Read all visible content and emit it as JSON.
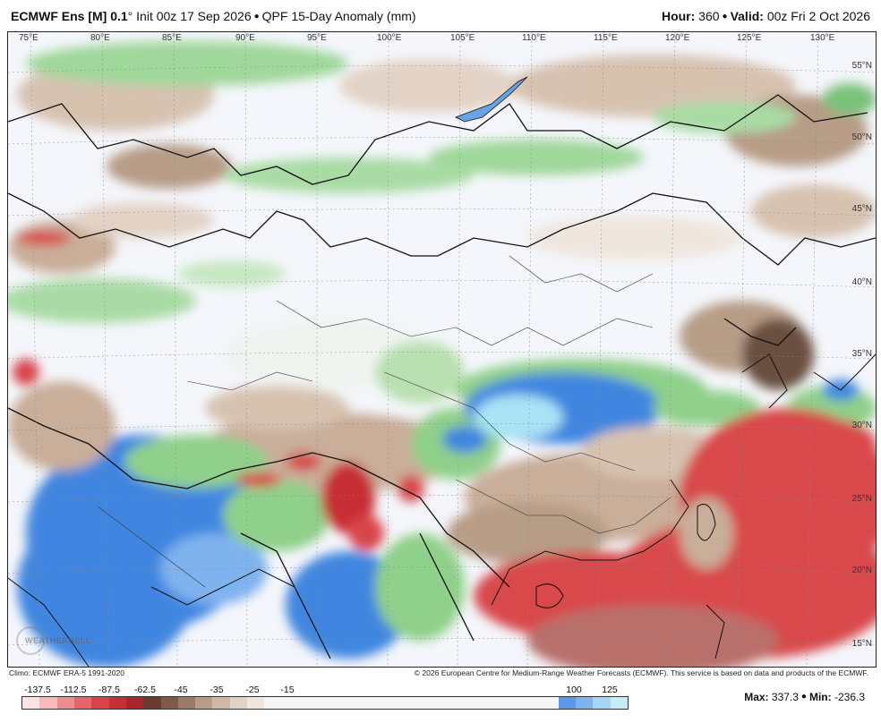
{
  "header": {
    "model": "ECMWF Ens [M] 0.1",
    "degree_mark": "°",
    "init": "Init 00z 17 Sep 2026",
    "product": "QPF 15-Day Anomaly (mm)",
    "hour_label": "Hour:",
    "hour_value": "360",
    "valid_label": "Valid:",
    "valid_value": "00z Fri 2 Oct 2026"
  },
  "map": {
    "lon_labels": [
      "75°E",
      "80°E",
      "85°E",
      "90°E",
      "95°E",
      "100°E",
      "105°E",
      "110°E",
      "115°E",
      "120°E",
      "125°E",
      "130°E"
    ],
    "lat_labels": [
      "55°N",
      "50°N",
      "45°N",
      "40°N",
      "35°N",
      "30°N",
      "25°N",
      "20°N",
      "15°N"
    ],
    "watermark": "WEATHERBELL",
    "colors": {
      "ocean_dry": "#d94a4c",
      "dry_brown": "#b79c86",
      "light_tan": "#e8d9cc",
      "green": "#8fd08a",
      "blue": "#3f86e0",
      "light_blue": "#a9e3f5",
      "neutral": "#f4f6fb"
    }
  },
  "credits": {
    "climo": "Climo: ECMWF ERA-5 1991-2020",
    "copyright": "© 2026 European Centre for Medium-Range Weather Forecasts (ECMWF). This service is based on data and products of the ECMWF."
  },
  "colorbar": {
    "labels": [
      "-137.5",
      "-112.5",
      "-87.5",
      "-62.5",
      "-45",
      "-35",
      "-25",
      "-15",
      "100",
      "125"
    ],
    "colors": [
      "#fde3e3",
      "#f7b9ba",
      "#ef8d8e",
      "#e5666a",
      "#d8444a",
      "#c72f36",
      "#a8262c",
      "#6b3a30",
      "#7f5a48",
      "#9c7b66",
      "#b79c86",
      "#cfb8a6",
      "#e3d3c6",
      "#efe6de",
      "#f5f5f5",
      "#f5f5f5",
      "#f5f5f5",
      "#f5f5f5",
      "#f5f5f5",
      "#f5f5f5",
      "#f5f5f5",
      "#f5f5f5",
      "#f5f5f5",
      "#f5f5f5",
      "#f5f5f5",
      "#f5f5f5",
      "#f5f5f5",
      "#f5f5f5",
      "#f5f5f5",
      "#f5f5f5",
      "#f5f5f5",
      "#5c98e8",
      "#7fb3ee",
      "#a7d6f4",
      "#c7ecf8"
    ]
  },
  "stats": {
    "max_label": "Max:",
    "max_value": "337.3",
    "min_label": "Min:",
    "min_value": "-236.3"
  }
}
